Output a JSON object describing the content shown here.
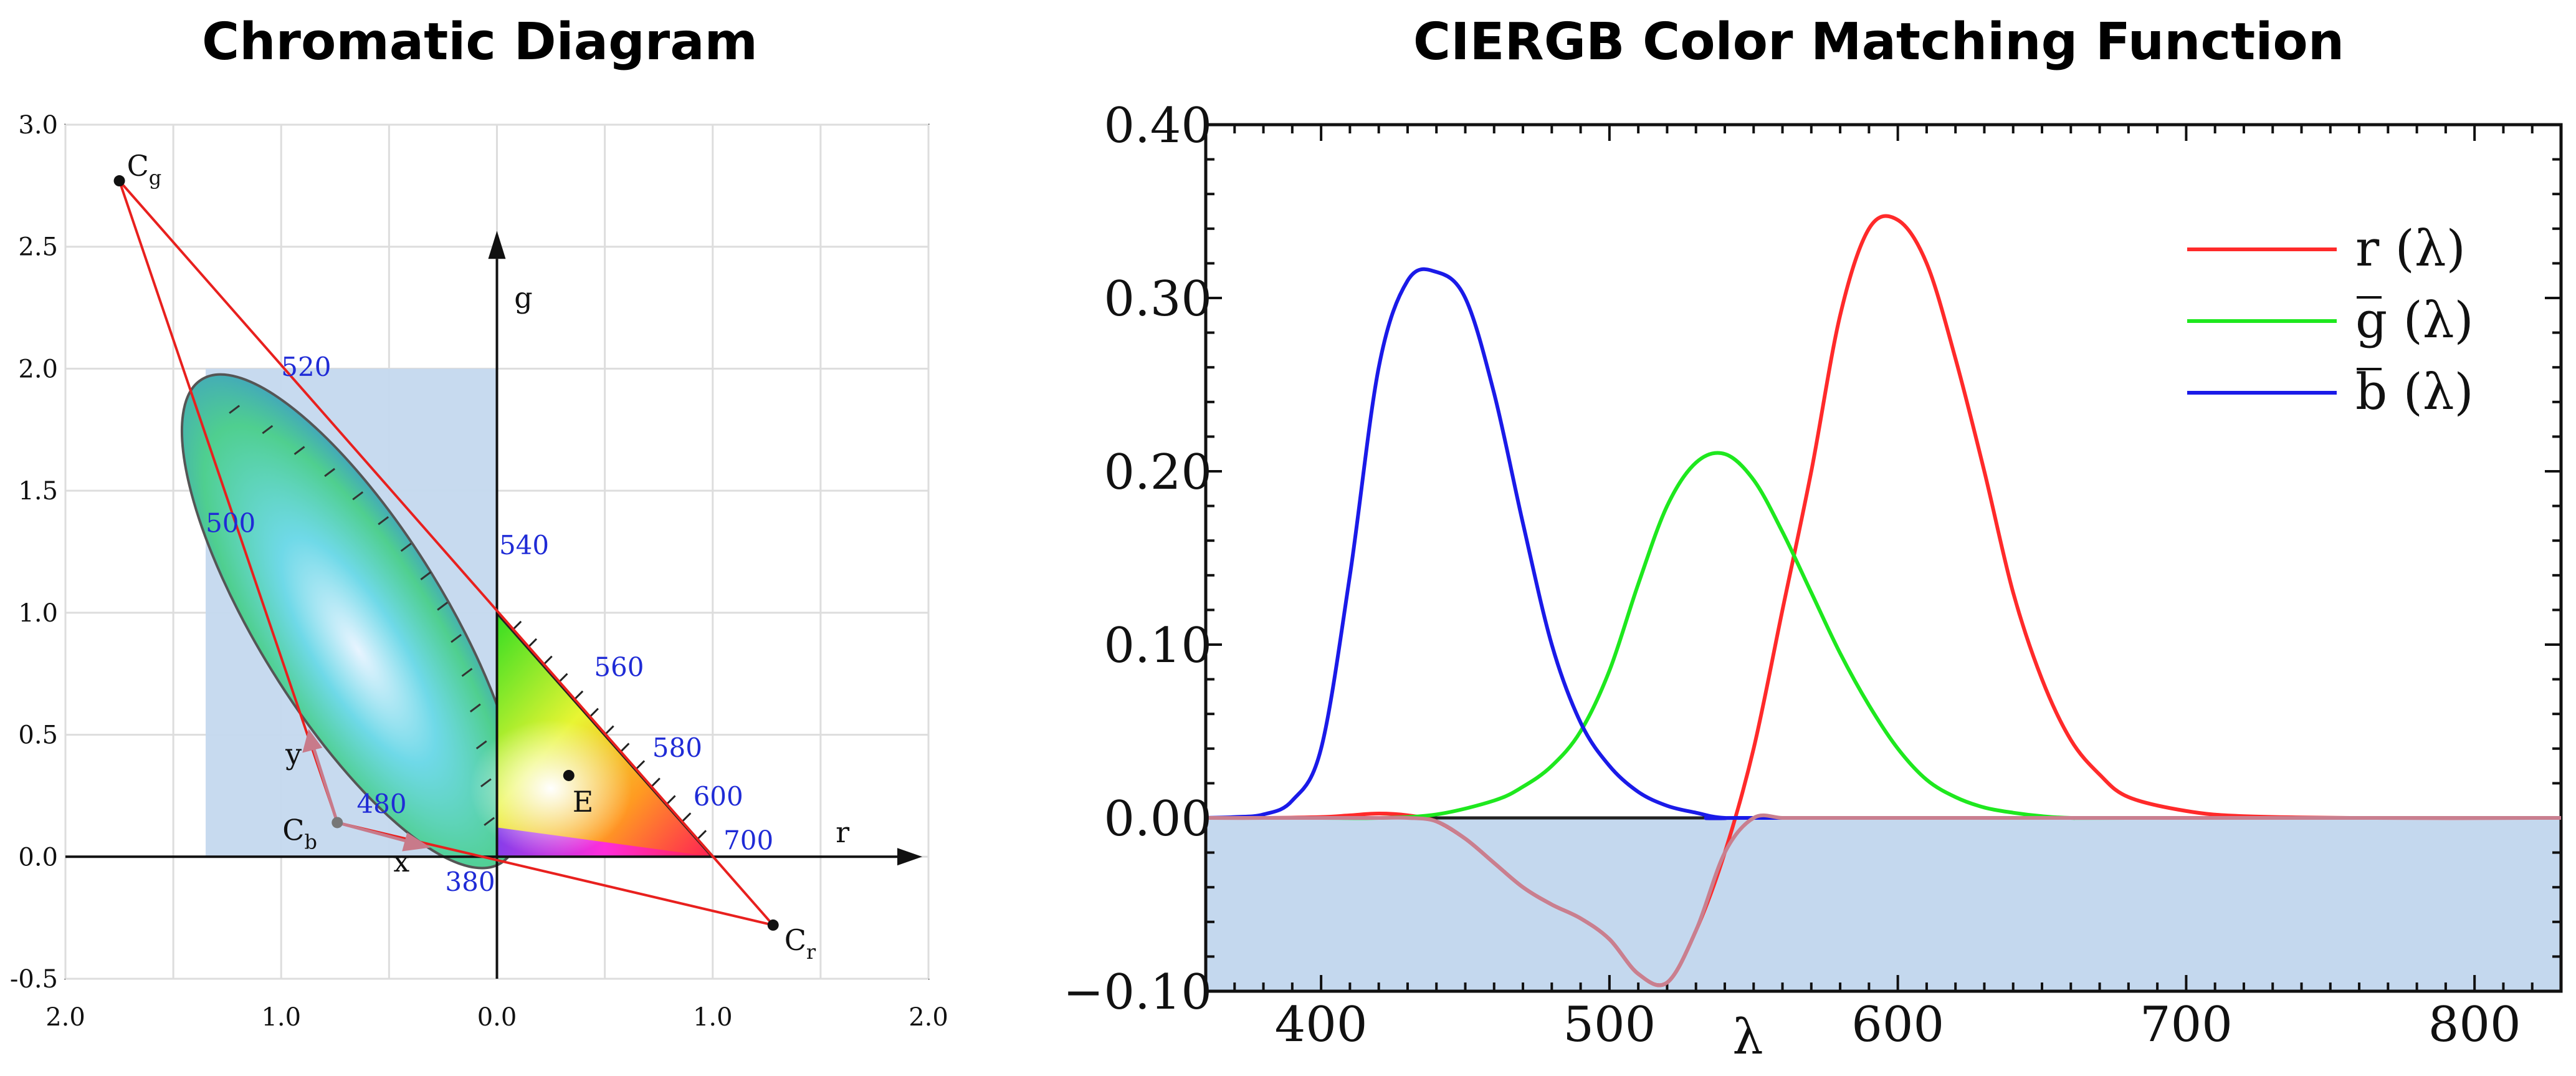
{
  "titles": {
    "left": "Chromatic Diagram",
    "right": "CIERGB Color Matching Function"
  },
  "chart_data": [
    {
      "type": "scatter",
      "title": "Chromatic Diagram",
      "x_ticks": [
        "2.0",
        "1.0",
        "0.0",
        "1.0",
        "2.0"
      ],
      "y_ticks": [
        "3.0",
        "2.5",
        "2.0",
        "1.5",
        "1.0",
        "0.5",
        "0.0",
        "-0.5"
      ],
      "xlim": [
        -2.0,
        2.0
      ],
      "ylim": [
        -0.5,
        3.0
      ],
      "grid": true,
      "axis_labels": {
        "r": "r",
        "g": "g",
        "x": "x",
        "y": "y"
      },
      "primaries": [
        {
          "label": "C",
          "sub": "g",
          "x": -1.75,
          "y": 2.77
        },
        {
          "label": "C",
          "sub": "r",
          "x": 1.28,
          "y": -0.28
        },
        {
          "label": "C",
          "sub": "b",
          "x": -0.74,
          "y": 0.14
        }
      ],
      "white_point": {
        "label": "E",
        "x": 0.333,
        "y": 0.333
      },
      "spectral_locus_labels": [
        {
          "label": "520",
          "x": -1.0,
          "y": 1.97
        },
        {
          "label": "500",
          "x": -1.35,
          "y": 1.33
        },
        {
          "label": "540",
          "x": 0.01,
          "y": 1.24
        },
        {
          "label": "560",
          "x": 0.45,
          "y": 0.74
        },
        {
          "label": "580",
          "x": 0.72,
          "y": 0.41
        },
        {
          "label": "600",
          "x": 0.91,
          "y": 0.21
        },
        {
          "label": "480",
          "x": -0.65,
          "y": 0.18
        },
        {
          "label": "700",
          "x": 1.05,
          "y": 0.03
        },
        {
          "label": "380",
          "x": -0.24,
          "y": -0.14
        }
      ],
      "shaded_region": {
        "x": [
          -1.35,
          0.0
        ],
        "y": [
          0.0,
          2.0
        ]
      },
      "colors": {
        "triangle": "#e8201e",
        "shade": "#c4d8ee",
        "labels": "#1f2bd6"
      }
    },
    {
      "type": "line",
      "title": "CIERGB Color Matching Function",
      "xlabel": "λ",
      "xlim": [
        360,
        830
      ],
      "ylim": [
        -0.1,
        0.4
      ],
      "x_ticks": [
        "400",
        "500",
        "600",
        "700",
        "800"
      ],
      "y_ticks": [
        "0.40",
        "0.30",
        "0.20",
        "0.10",
        "0.00",
        "−0.10"
      ],
      "legend": "top-right",
      "series": [
        {
          "name": "r (λ)",
          "color": "#ff2a2a",
          "x": [
            360,
            380,
            400,
            410,
            420,
            430,
            440,
            450,
            460,
            470,
            480,
            490,
            500,
            510,
            520,
            530,
            540,
            550,
            560,
            570,
            580,
            590,
            600,
            610,
            620,
            630,
            640,
            650,
            660,
            670,
            680,
            700,
            720,
            760,
            830
          ],
          "y": [
            0.0,
            0.0,
            0.0005,
            0.0015,
            0.0025,
            0.0015,
            -0.002,
            -0.012,
            -0.026,
            -0.04,
            -0.05,
            -0.058,
            -0.07,
            -0.09,
            -0.095,
            -0.065,
            -0.02,
            0.04,
            0.12,
            0.2,
            0.29,
            0.34,
            0.345,
            0.32,
            0.265,
            0.2,
            0.13,
            0.08,
            0.045,
            0.025,
            0.012,
            0.004,
            0.001,
            0.0,
            0.0
          ]
        },
        {
          "name": "g (λ)",
          "color": "#1ee81e",
          "x": [
            360,
            400,
            420,
            440,
            460,
            470,
            480,
            490,
            500,
            510,
            520,
            530,
            540,
            550,
            560,
            570,
            580,
            590,
            600,
            610,
            620,
            630,
            640,
            650,
            660,
            680,
            830
          ],
          "y": [
            0.0,
            0.0,
            0.0,
            0.002,
            0.01,
            0.018,
            0.03,
            0.05,
            0.085,
            0.135,
            0.18,
            0.205,
            0.21,
            0.195,
            0.165,
            0.13,
            0.095,
            0.065,
            0.04,
            0.022,
            0.012,
            0.006,
            0.003,
            0.001,
            0.0,
            0.0,
            0.0
          ]
        },
        {
          "name": "b (λ)",
          "color": "#1a1ae8",
          "x": [
            360,
            370,
            380,
            390,
            400,
            410,
            420,
            430,
            440,
            450,
            460,
            470,
            480,
            490,
            500,
            510,
            520,
            530,
            540,
            560,
            830
          ],
          "y": [
            0.0,
            0.0005,
            0.002,
            0.01,
            0.04,
            0.14,
            0.26,
            0.31,
            0.315,
            0.3,
            0.245,
            0.17,
            0.1,
            0.055,
            0.03,
            0.015,
            0.007,
            0.003,
            0.0,
            0.0,
            0.0
          ]
        }
      ],
      "shaded_region": {
        "y": [
          -0.1,
          0.0
        ]
      },
      "colors": {
        "shade": "#c4d8ee"
      }
    }
  ]
}
